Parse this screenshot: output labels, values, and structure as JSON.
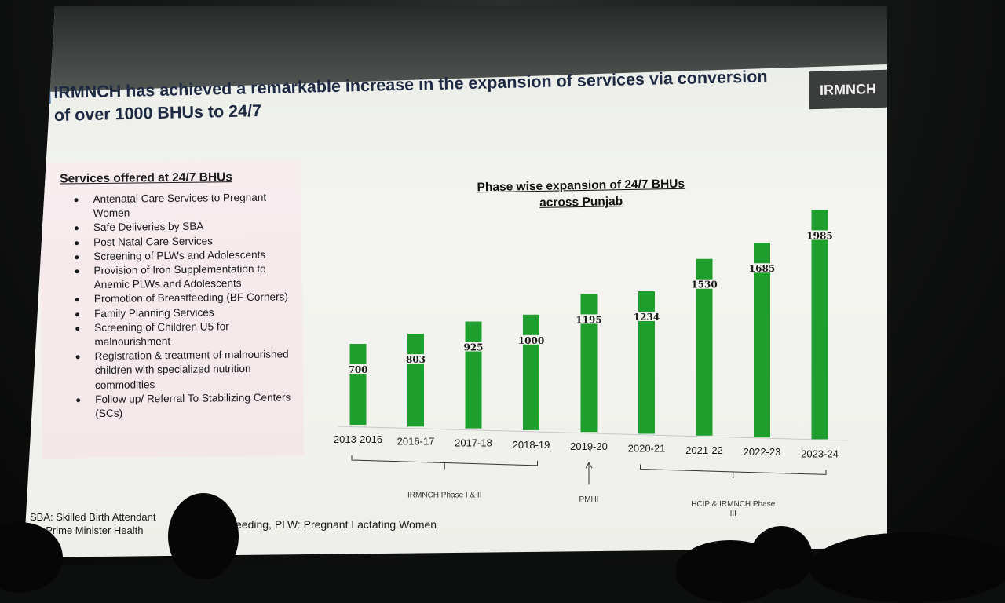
{
  "slide": {
    "title": "IRMNCH has achieved a remarkable increase in the expansion of services via conversion of over 1000 BHUs to 24/7",
    "badge": "IRMNCH"
  },
  "services": {
    "heading": "Services offered at 24/7 BHUs",
    "items": [
      "Antenatal Care Services to Pregnant Women",
      "Safe Deliveries by SBA",
      "Post Natal Care Services",
      "Screening of PLWs and Adolescents",
      "Provision of Iron Supplementation to Anemic PLWs and Adolescents",
      "Promotion of Breastfeeding (BF Corners)",
      "Family Planning Services",
      "Screening of Children U5 for malnourishment",
      "Registration & treatment of malnourished children with specialized nutrition commodities",
      "Follow up/ Referral To Stabilizing Centers (SCs)"
    ]
  },
  "chart_data": {
    "type": "bar",
    "title": "Phase wise expansion of 24/7 BHUs across Punjab",
    "categories": [
      "2013-2016",
      "2016-17",
      "2017-18",
      "2018-19",
      "2019-20",
      "2020-21",
      "2021-22",
      "2022-23",
      "2023-24"
    ],
    "values": [
      700,
      803,
      925,
      1000,
      1195,
      1234,
      1530,
      1685,
      1985
    ],
    "bar_color": "#1e9e2c",
    "phases": [
      {
        "label": "IRMNCH Phase I & II",
        "categories": [
          "2013-2016",
          "2016-17",
          "2017-18",
          "2018-19"
        ]
      },
      {
        "label": "PMHI",
        "categories": [
          "2019-20"
        ]
      },
      {
        "label": "HCIP & IRMNCH Phase III",
        "categories": [
          "2020-21",
          "2021-22",
          "2022-23",
          "2023-24"
        ]
      }
    ]
  },
  "footnotes": {
    "line1": "SBA: Skilled Birth Attendant",
    "line2": "HI: Prime Minister Health",
    "line3": "eeding, PLW: Pregnant Lactating Women"
  }
}
